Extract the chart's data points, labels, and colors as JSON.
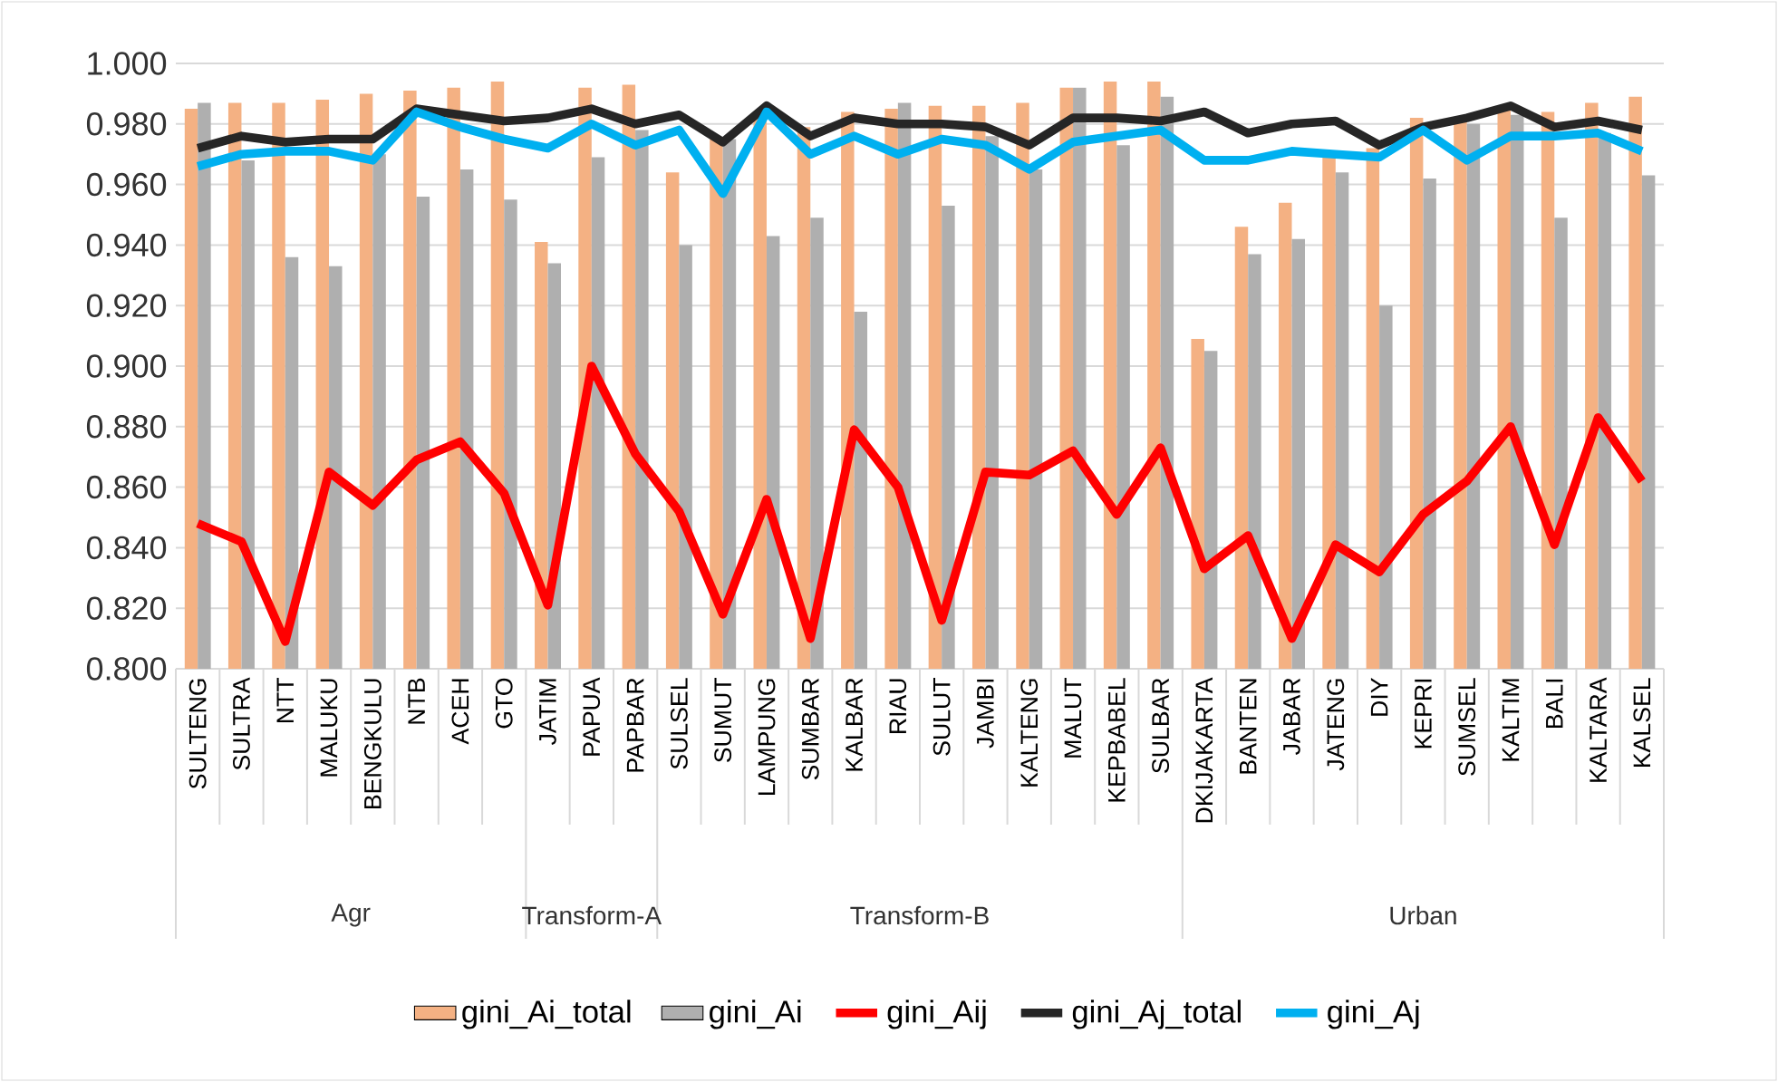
{
  "chart_data": {
    "type": "bar",
    "categories": [
      "SULTENG",
      "SULTRA",
      "NTT",
      "MALUKU",
      "BENGKULU",
      "NTB",
      "ACEH",
      "GTO",
      "JATIM",
      "PAPUA",
      "PAPBAR",
      "SULSEL",
      "SUMUT",
      "LAMPUNG",
      "SUMBAR",
      "KALBAR",
      "RIAU",
      "SULUT",
      "JAMBI",
      "KALTENG",
      "MALUT",
      "KEPBABEL",
      "SULBAR",
      "DKIJAKARTA",
      "BANTEN",
      "JABAR",
      "JATENG",
      "DIY",
      "KEPRI",
      "SUMSEL",
      "KALTIM",
      "BALI",
      "KALTARA",
      "KALSEL"
    ],
    "series": [
      {
        "name": "gini_Ai_total",
        "color": "#f4b183",
        "values": [
          0.985,
          0.987,
          0.987,
          0.988,
          0.99,
          0.991,
          0.992,
          0.994,
          0.941,
          0.992,
          0.993,
          0.964,
          0.975,
          0.982,
          0.979,
          0.984,
          0.985,
          0.986,
          0.986,
          0.987,
          0.992,
          0.994,
          0.994,
          0.909,
          0.946,
          0.954,
          0.97,
          0.972,
          0.982,
          0.982,
          0.985,
          0.984,
          0.987,
          0.989
        ]
      },
      {
        "name": "gini_Ai",
        "color": "#afafaf",
        "values": [
          0.987,
          0.968,
          0.936,
          0.933,
          0.97,
          0.956,
          0.965,
          0.955,
          0.934,
          0.969,
          0.978,
          0.94,
          0.975,
          0.943,
          0.949,
          0.918,
          0.987,
          0.953,
          0.976,
          0.965,
          0.992,
          0.973,
          0.989,
          0.905,
          0.937,
          0.942,
          0.964,
          0.92,
          0.962,
          0.98,
          0.983,
          0.949,
          0.977,
          0.963
        ]
      },
      {
        "name": "gini_Aij",
        "type": "line",
        "color": "#ff0000",
        "values": [
          0.848,
          0.842,
          0.809,
          0.865,
          0.854,
          0.869,
          0.875,
          0.858,
          0.821,
          0.9,
          0.871,
          0.852,
          0.818,
          0.856,
          0.81,
          0.879,
          0.86,
          0.816,
          0.865,
          0.864,
          0.872,
          0.851,
          0.873,
          0.833,
          0.844,
          0.81,
          0.841,
          0.832,
          0.851,
          0.862,
          0.88,
          0.841,
          0.883,
          0.862
        ]
      },
      {
        "name": "gini_Aj_total",
        "type": "line",
        "color": "#262626",
        "values": [
          0.972,
          0.976,
          0.974,
          0.975,
          0.975,
          0.985,
          0.983,
          0.981,
          0.982,
          0.985,
          0.98,
          0.983,
          0.974,
          0.986,
          0.976,
          0.982,
          0.98,
          0.98,
          0.979,
          0.973,
          0.982,
          0.982,
          0.981,
          0.984,
          0.977,
          0.98,
          0.981,
          0.973,
          0.979,
          0.982,
          0.986,
          0.979,
          0.981,
          0.978
        ]
      },
      {
        "name": "gini_Aj",
        "type": "line",
        "color": "#00b0f0",
        "values": [
          0.966,
          0.97,
          0.971,
          0.971,
          0.968,
          0.984,
          0.979,
          0.975,
          0.972,
          0.98,
          0.973,
          0.978,
          0.957,
          0.984,
          0.97,
          0.976,
          0.97,
          0.975,
          0.973,
          0.965,
          0.974,
          0.976,
          0.978,
          0.968,
          0.968,
          0.971,
          0.97,
          0.969,
          0.978,
          0.968,
          0.976,
          0.976,
          0.977,
          0.971
        ]
      }
    ],
    "ylim": [
      0.8,
      1.0
    ],
    "yticks": [
      {
        "value": 0.8,
        "label": "0.800"
      },
      {
        "value": 0.82,
        "label": "0.820"
      },
      {
        "value": 0.84,
        "label": "0.840"
      },
      {
        "value": 0.86,
        "label": "0.860"
      },
      {
        "value": 0.88,
        "label": "0.880"
      },
      {
        "value": 0.9,
        "label": "0.900"
      },
      {
        "value": 0.92,
        "label": "0.920"
      },
      {
        "value": 0.94,
        "label": "0.940"
      },
      {
        "value": 0.96,
        "label": "0.960"
      },
      {
        "value": 0.98,
        "label": "0.980"
      },
      {
        "value": 1.0,
        "label": "1.000"
      }
    ],
    "grid": "y",
    "legend": "bottom",
    "annotations": [
      "Agr",
      "Transform-A",
      "Transform-B",
      "Urban"
    ]
  }
}
